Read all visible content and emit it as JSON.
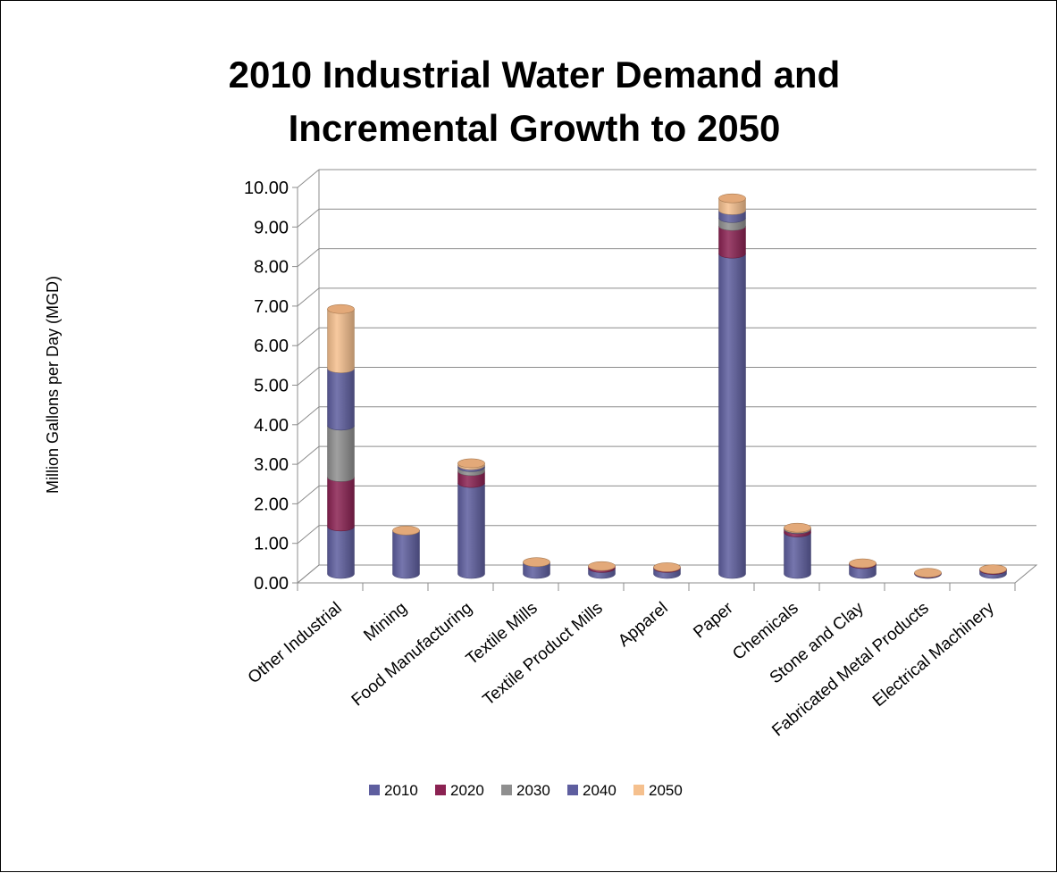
{
  "chart_data": {
    "type": "bar",
    "stacked": true,
    "style": "3d-cylinder",
    "title_lines": [
      "2010 Industrial Water Demand and",
      "Incremental Growth to 2050"
    ],
    "ylabel": "Million Gallons per Day (MGD)",
    "xlabel": "",
    "ylim": [
      0,
      10
    ],
    "yticks": [
      "0.00",
      "1.00",
      "2.00",
      "3.00",
      "4.00",
      "5.00",
      "6.00",
      "7.00",
      "8.00",
      "9.00",
      "10.00"
    ],
    "grid": true,
    "legend_position": "bottom",
    "categories": [
      "Other Industrial",
      "Mining",
      "Food Manufacturing",
      "Textile Mills",
      "Textile Product Mills",
      "Apparel",
      "Paper",
      "Chemicals",
      "Stone and Clay",
      "Fabricated Metal Products",
      "Electrical Machinery"
    ],
    "series": [
      {
        "name": "2010",
        "color": "#5e5e9f",
        "values": [
          1.2,
          1.1,
          2.3,
          0.3,
          0.15,
          0.15,
          8.1,
          1.05,
          0.25,
          0.02,
          0.1
        ]
      },
      {
        "name": "2020",
        "color": "#8b2252",
        "values": [
          1.25,
          0.0,
          0.3,
          0.0,
          0.05,
          0.02,
          0.7,
          0.08,
          0.02,
          0.01,
          0.02
        ]
      },
      {
        "name": "2030",
        "color": "#8f8f8f",
        "values": [
          1.3,
          0.0,
          0.1,
          0.0,
          0.0,
          0.0,
          0.2,
          0.01,
          0.0,
          0.0,
          0.0
        ]
      },
      {
        "name": "2040",
        "color": "#5e5e9f",
        "values": [
          1.45,
          0.0,
          0.05,
          0.0,
          0.0,
          0.0,
          0.2,
          0.01,
          0.0,
          0.0,
          0.0
        ]
      },
      {
        "name": "2050",
        "color": "#f5c08e",
        "values": [
          1.5,
          0.0,
          0.05,
          0.0,
          0.0,
          0.0,
          0.3,
          0.02,
          0.0,
          0.0,
          0.0
        ]
      }
    ]
  }
}
